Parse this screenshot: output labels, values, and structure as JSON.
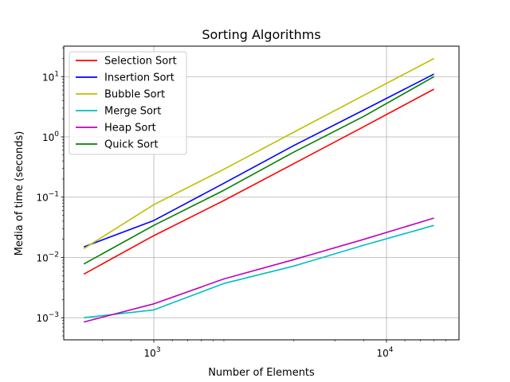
{
  "chart_data": {
    "type": "line",
    "title": "Sorting Algorithms",
    "xlabel": "Number of Elements",
    "ylabel": "Media of time (seconds)",
    "xscale": "log",
    "yscale": "log",
    "xlim": [
      410,
      20500
    ],
    "ylim": [
      0.00043,
      32
    ],
    "grid": true,
    "legend_position": "top-left",
    "x": [
      500,
      1000,
      2000,
      4000,
      8000,
      16000
    ],
    "x_ticks": [
      {
        "value": 1000,
        "base": "10",
        "exp": "3"
      },
      {
        "value": 10000,
        "base": "10",
        "exp": "4"
      }
    ],
    "y_ticks": [
      {
        "value": 0.001,
        "base": "10",
        "exp": "−3"
      },
      {
        "value": 0.01,
        "base": "10",
        "exp": "−2"
      },
      {
        "value": 0.1,
        "base": "10",
        "exp": "−1"
      },
      {
        "value": 1,
        "base": "10",
        "exp": "0"
      },
      {
        "value": 10,
        "base": "10",
        "exp": "1"
      }
    ],
    "series": [
      {
        "name": "Selection Sort",
        "color": "#ff0000",
        "values": [
          0.0053,
          0.023,
          0.088,
          0.36,
          1.48,
          6.2
        ]
      },
      {
        "name": "Insertion Sort",
        "color": "#0000ff",
        "values": [
          0.015,
          0.041,
          0.17,
          0.72,
          2.8,
          11.0
        ]
      },
      {
        "name": "Bubble Sort",
        "color": "#bfbf00",
        "values": [
          0.014,
          0.075,
          0.29,
          1.2,
          4.9,
          20.0
        ]
      },
      {
        "name": "Merge Sort",
        "color": "#00bfbf",
        "values": [
          0.001,
          0.00135,
          0.0037,
          0.0072,
          0.016,
          0.034
        ]
      },
      {
        "name": "Heap Sort",
        "color": "#bf00bf",
        "values": [
          0.00085,
          0.0017,
          0.0044,
          0.0092,
          0.02,
          0.045
        ]
      },
      {
        "name": "Quick Sort",
        "color": "#008000",
        "values": [
          0.0078,
          0.034,
          0.13,
          0.56,
          2.2,
          10.0
        ]
      }
    ]
  }
}
